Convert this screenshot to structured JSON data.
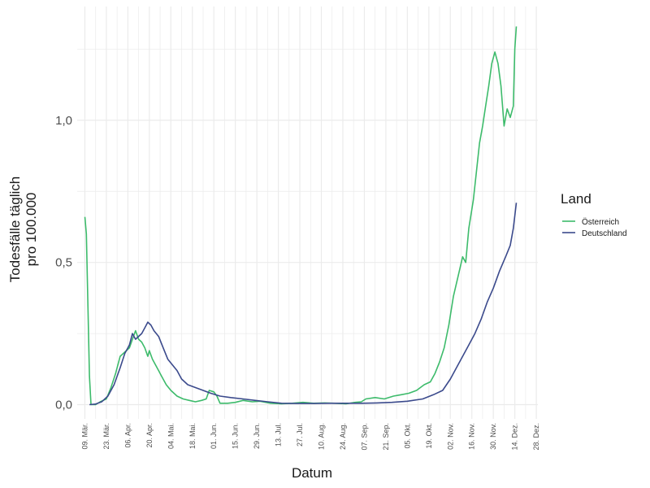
{
  "chart_data": {
    "type": "line",
    "xlabel": "Datum",
    "ylabel_lines": [
      "Todesfälle täglich",
      "pro 100.000"
    ],
    "ylim": [
      -0.05,
      1.4
    ],
    "xlim": [
      "2020-03-04",
      "2020-12-29"
    ],
    "grid": true,
    "legend_placement": "right",
    "yticks": [
      {
        "value": 0.0,
        "label": "0,0"
      },
      {
        "value": 0.5,
        "label": "0,5"
      },
      {
        "value": 1.0,
        "label": "1,0"
      }
    ],
    "xticks": [
      {
        "date": "2020-03-09",
        "label": "09. Mär."
      },
      {
        "date": "2020-03-23",
        "label": "23. Mär."
      },
      {
        "date": "2020-04-06",
        "label": "06. Apr."
      },
      {
        "date": "2020-04-20",
        "label": "20. Apr."
      },
      {
        "date": "2020-05-04",
        "label": "04. Mai."
      },
      {
        "date": "2020-05-18",
        "label": "18. Mai."
      },
      {
        "date": "2020-06-01",
        "label": "01. Jun."
      },
      {
        "date": "2020-06-15",
        "label": "15. Jun."
      },
      {
        "date": "2020-06-29",
        "label": "29. Jun."
      },
      {
        "date": "2020-07-13",
        "label": "13. Jul."
      },
      {
        "date": "2020-07-27",
        "label": "27. Jul."
      },
      {
        "date": "2020-08-10",
        "label": "10. Aug."
      },
      {
        "date": "2020-08-24",
        "label": "24. Aug."
      },
      {
        "date": "2020-09-07",
        "label": "07. Sep."
      },
      {
        "date": "2020-09-21",
        "label": "21. Sep."
      },
      {
        "date": "2020-10-05",
        "label": "05. Okt."
      },
      {
        "date": "2020-10-19",
        "label": "19. Okt."
      },
      {
        "date": "2020-11-02",
        "label": "02. Nov."
      },
      {
        "date": "2020-11-16",
        "label": "16. Nov."
      },
      {
        "date": "2020-11-30",
        "label": "30. Nov."
      },
      {
        "date": "2020-12-14",
        "label": "14. Dez."
      },
      {
        "date": "2020-12-28",
        "label": "28. Dez."
      }
    ],
    "legend": {
      "title": "Land",
      "entries": [
        {
          "name": "Österreich",
          "color": "#3dbb6b"
        },
        {
          "name": "Deutschland",
          "color": "#3b4a8c"
        }
      ]
    },
    "series": [
      {
        "name": "Österreich",
        "color": "#3dbb6b",
        "points": [
          [
            "2020-03-09",
            0.66
          ],
          [
            "2020-03-10",
            0.6
          ],
          [
            "2020-03-11",
            0.35
          ],
          [
            "2020-03-12",
            0.1
          ],
          [
            "2020-03-13",
            0.0
          ],
          [
            "2020-03-16",
            0.0
          ],
          [
            "2020-03-19",
            0.01
          ],
          [
            "2020-03-23",
            0.02
          ],
          [
            "2020-03-26",
            0.06
          ],
          [
            "2020-03-29",
            0.11
          ],
          [
            "2020-04-01",
            0.17
          ],
          [
            "2020-04-03",
            0.18
          ],
          [
            "2020-04-05",
            0.19
          ],
          [
            "2020-04-07",
            0.2
          ],
          [
            "2020-04-09",
            0.23
          ],
          [
            "2020-04-11",
            0.26
          ],
          [
            "2020-04-13",
            0.23
          ],
          [
            "2020-04-15",
            0.22
          ],
          [
            "2020-04-17",
            0.2
          ],
          [
            "2020-04-19",
            0.17
          ],
          [
            "2020-04-20",
            0.19
          ],
          [
            "2020-04-22",
            0.16
          ],
          [
            "2020-04-24",
            0.14
          ],
          [
            "2020-04-26",
            0.12
          ],
          [
            "2020-04-28",
            0.1
          ],
          [
            "2020-05-01",
            0.07
          ],
          [
            "2020-05-04",
            0.05
          ],
          [
            "2020-05-08",
            0.03
          ],
          [
            "2020-05-12",
            0.02
          ],
          [
            "2020-05-16",
            0.015
          ],
          [
            "2020-05-20",
            0.01
          ],
          [
            "2020-05-24",
            0.015
          ],
          [
            "2020-05-27",
            0.02
          ],
          [
            "2020-05-29",
            0.05
          ],
          [
            "2020-06-01",
            0.045
          ],
          [
            "2020-06-03",
            0.03
          ],
          [
            "2020-06-05",
            0.005
          ],
          [
            "2020-06-10",
            0.005
          ],
          [
            "2020-06-15",
            0.008
          ],
          [
            "2020-06-20",
            0.015
          ],
          [
            "2020-06-26",
            0.01
          ],
          [
            "2020-07-01",
            0.012
          ],
          [
            "2020-07-08",
            0.005
          ],
          [
            "2020-07-15",
            0.003
          ],
          [
            "2020-07-22",
            0.005
          ],
          [
            "2020-07-29",
            0.008
          ],
          [
            "2020-08-05",
            0.005
          ],
          [
            "2020-08-12",
            0.006
          ],
          [
            "2020-08-19",
            0.005
          ],
          [
            "2020-08-26",
            0.003
          ],
          [
            "2020-09-01",
            0.008
          ],
          [
            "2020-09-05",
            0.01
          ],
          [
            "2020-09-08",
            0.02
          ],
          [
            "2020-09-14",
            0.025
          ],
          [
            "2020-09-20",
            0.02
          ],
          [
            "2020-09-26",
            0.03
          ],
          [
            "2020-10-01",
            0.035
          ],
          [
            "2020-10-06",
            0.04
          ],
          [
            "2020-10-11",
            0.05
          ],
          [
            "2020-10-16",
            0.07
          ],
          [
            "2020-10-20",
            0.08
          ],
          [
            "2020-10-23",
            0.11
          ],
          [
            "2020-10-26",
            0.15
          ],
          [
            "2020-10-29",
            0.2
          ],
          [
            "2020-11-01",
            0.28
          ],
          [
            "2020-11-04",
            0.38
          ],
          [
            "2020-11-07",
            0.45
          ],
          [
            "2020-11-10",
            0.52
          ],
          [
            "2020-11-12",
            0.5
          ],
          [
            "2020-11-14",
            0.62
          ],
          [
            "2020-11-17",
            0.72
          ],
          [
            "2020-11-19",
            0.82
          ],
          [
            "2020-11-21",
            0.92
          ],
          [
            "2020-11-23",
            0.98
          ],
          [
            "2020-11-25",
            1.05
          ],
          [
            "2020-11-27",
            1.12
          ],
          [
            "2020-11-29",
            1.2
          ],
          [
            "2020-12-01",
            1.24
          ],
          [
            "2020-12-03",
            1.2
          ],
          [
            "2020-12-05",
            1.12
          ],
          [
            "2020-12-07",
            0.98
          ],
          [
            "2020-12-09",
            1.04
          ],
          [
            "2020-12-11",
            1.01
          ],
          [
            "2020-12-13",
            1.05
          ],
          [
            "2020-12-14",
            1.25
          ],
          [
            "2020-12-15",
            1.33
          ]
        ]
      },
      {
        "name": "Deutschland",
        "color": "#3b4a8c",
        "points": [
          [
            "2020-03-12",
            0.0
          ],
          [
            "2020-03-16",
            0.002
          ],
          [
            "2020-03-20",
            0.01
          ],
          [
            "2020-03-24",
            0.03
          ],
          [
            "2020-03-28",
            0.07
          ],
          [
            "2020-04-01",
            0.13
          ],
          [
            "2020-04-04",
            0.18
          ],
          [
            "2020-04-07",
            0.21
          ],
          [
            "2020-04-09",
            0.25
          ],
          [
            "2020-04-11",
            0.23
          ],
          [
            "2020-04-13",
            0.24
          ],
          [
            "2020-04-15",
            0.25
          ],
          [
            "2020-04-17",
            0.27
          ],
          [
            "2020-04-19",
            0.29
          ],
          [
            "2020-04-21",
            0.28
          ],
          [
            "2020-04-23",
            0.26
          ],
          [
            "2020-04-26",
            0.24
          ],
          [
            "2020-04-29",
            0.2
          ],
          [
            "2020-05-02",
            0.16
          ],
          [
            "2020-05-05",
            0.14
          ],
          [
            "2020-05-08",
            0.12
          ],
          [
            "2020-05-11",
            0.09
          ],
          [
            "2020-05-15",
            0.07
          ],
          [
            "2020-05-20",
            0.06
          ],
          [
            "2020-05-25",
            0.05
          ],
          [
            "2020-05-30",
            0.04
          ],
          [
            "2020-06-05",
            0.03
          ],
          [
            "2020-06-12",
            0.025
          ],
          [
            "2020-06-20",
            0.02
          ],
          [
            "2020-06-28",
            0.015
          ],
          [
            "2020-07-06",
            0.01
          ],
          [
            "2020-07-15",
            0.005
          ],
          [
            "2020-07-25",
            0.004
          ],
          [
            "2020-08-05",
            0.004
          ],
          [
            "2020-08-15",
            0.005
          ],
          [
            "2020-08-25",
            0.005
          ],
          [
            "2020-09-05",
            0.005
          ],
          [
            "2020-09-15",
            0.006
          ],
          [
            "2020-09-25",
            0.008
          ],
          [
            "2020-10-05",
            0.012
          ],
          [
            "2020-10-15",
            0.02
          ],
          [
            "2020-10-22",
            0.035
          ],
          [
            "2020-10-28",
            0.05
          ],
          [
            "2020-11-02",
            0.09
          ],
          [
            "2020-11-06",
            0.13
          ],
          [
            "2020-11-10",
            0.17
          ],
          [
            "2020-11-14",
            0.21
          ],
          [
            "2020-11-18",
            0.25
          ],
          [
            "2020-11-22",
            0.3
          ],
          [
            "2020-11-26",
            0.36
          ],
          [
            "2020-11-30",
            0.41
          ],
          [
            "2020-12-04",
            0.47
          ],
          [
            "2020-12-08",
            0.52
          ],
          [
            "2020-12-11",
            0.56
          ],
          [
            "2020-12-13",
            0.62
          ],
          [
            "2020-12-15",
            0.71
          ]
        ]
      }
    ]
  }
}
